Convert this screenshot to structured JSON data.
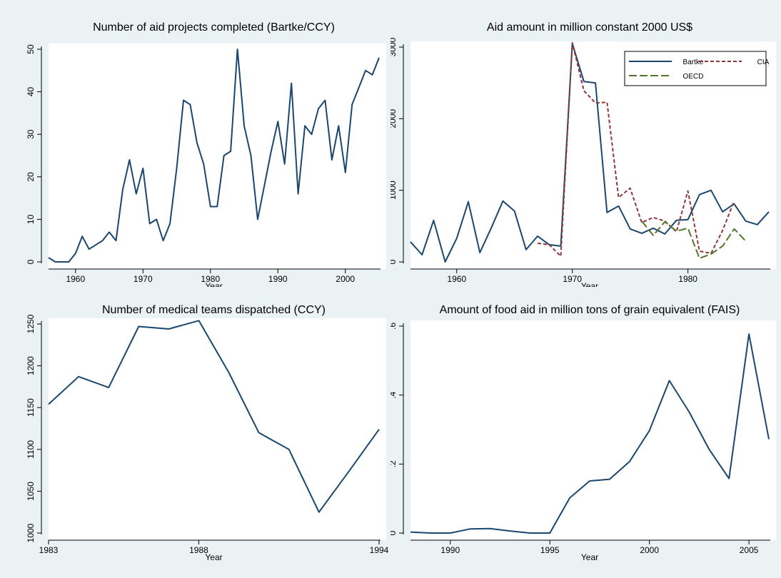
{
  "colors": {
    "background": "#eaf2f3",
    "plot_area": "#ffffff",
    "navy": "#1a476f",
    "maroon": "#90353b",
    "olive": "#55752f"
  },
  "chart_data": [
    {
      "type": "line",
      "title": "Number of aid projects completed (Bartke/CCY)",
      "xlabel": "Year",
      "ylabel": "",
      "xlim": [
        1956,
        2005
      ],
      "ylim": [
        0,
        50
      ],
      "xticks": [
        "1960",
        "1970",
        "1980",
        "1990",
        "2000"
      ],
      "yticks": [
        "0",
        "10",
        "20",
        "30",
        "40",
        "50"
      ],
      "grid": false,
      "series": [
        {
          "color": "#1a476f",
          "dash": "",
          "x": [
            1956,
            1957,
            1958,
            1959,
            1960,
            1961,
            1962,
            1963,
            1964,
            1965,
            1966,
            1967,
            1968,
            1969,
            1970,
            1971,
            1972,
            1973,
            1974,
            1975,
            1976,
            1977,
            1978,
            1979,
            1980,
            1981,
            1982,
            1983,
            1984,
            1985,
            1986,
            1987,
            1988,
            1989,
            1990,
            1991,
            1992,
            1993,
            1994,
            1995,
            1996,
            1997,
            1998,
            1999,
            2000,
            2001,
            2002,
            2003,
            2004,
            2005
          ],
          "y": [
            1,
            0,
            0,
            0,
            2,
            6,
            3,
            4,
            5,
            7,
            5,
            17,
            24,
            16,
            22,
            9,
            10,
            5,
            9,
            22,
            38,
            37,
            28,
            23,
            13,
            13,
            25,
            26,
            50,
            32,
            25,
            10,
            18,
            26,
            33,
            23,
            42,
            16,
            32,
            30,
            36,
            38,
            24,
            32,
            21,
            37,
            41,
            45,
            44,
            48
          ]
        }
      ]
    },
    {
      "type": "line",
      "title": "Aid amount in million constant 2000 US$",
      "xlabel": "Year",
      "ylabel": "",
      "xlim": [
        1956,
        1987
      ],
      "ylim": [
        0,
        3000
      ],
      "xticks": [
        "1960",
        "1970",
        "1980"
      ],
      "yticks": [
        "0",
        "1000",
        "2000",
        "3000"
      ],
      "grid": false,
      "legend": "top-right",
      "series": [
        {
          "name": "Bartke",
          "color": "#1a476f",
          "dash": "",
          "x": [
            1956,
            1957,
            1958,
            1959,
            1960,
            1961,
            1962,
            1963,
            1964,
            1965,
            1966,
            1967,
            1968,
            1969,
            1970,
            1971,
            1972,
            1973,
            1974,
            1975,
            1976,
            1977,
            1978,
            1979,
            1980,
            1981,
            1982,
            1983,
            1984,
            1985,
            1986,
            1987
          ],
          "y": [
            280,
            100,
            580,
            0,
            330,
            840,
            130,
            480,
            850,
            710,
            170,
            360,
            240,
            220,
            3050,
            2520,
            2500,
            690,
            780,
            460,
            400,
            470,
            390,
            580,
            590,
            940,
            1000,
            700,
            810,
            570,
            520,
            700
          ]
        },
        {
          "name": "CIA",
          "color": "#90353b",
          "dash": "5,3",
          "x": [
            1967,
            1968,
            1969,
            1970,
            1971,
            1972,
            1973,
            1974,
            1975,
            1976,
            1977,
            1978,
            1979,
            1980,
            1981,
            1982,
            1983,
            1984
          ],
          "y": [
            260,
            240,
            80,
            3060,
            2390,
            2220,
            2230,
            900,
            1030,
            550,
            620,
            570,
            420,
            990,
            150,
            120,
            440,
            850
          ]
        },
        {
          "name": "OECD",
          "color": "#55752f",
          "dash": "11,4",
          "x": [
            1976,
            1977,
            1978,
            1979,
            1980,
            1981,
            1982,
            1983,
            1984,
            1985
          ],
          "y": [
            570,
            370,
            560,
            430,
            470,
            50,
            110,
            220,
            460,
            290
          ]
        }
      ]
    },
    {
      "type": "line",
      "title": "Number of medical teams dispatched (CCY)",
      "xlabel": "Year",
      "ylabel": "",
      "xlim": [
        1983,
        1994
      ],
      "ylim": [
        1000,
        1250
      ],
      "xticks": [
        "1983",
        "1988",
        "1994"
      ],
      "yticks": [
        "1000",
        "1050",
        "1100",
        "1150",
        "1200",
        "1250"
      ],
      "grid": false,
      "series": [
        {
          "color": "#1a476f",
          "dash": "",
          "x": [
            1983,
            1984,
            1985,
            1986,
            1987,
            1988,
            1989,
            1990,
            1991,
            1992,
            1993,
            1994
          ],
          "y": [
            1154,
            1187,
            1174,
            1247,
            1244,
            1254,
            1192,
            1120,
            1100,
            1025,
            1074,
            1124
          ]
        }
      ]
    },
    {
      "type": "line",
      "title": "Amount of food aid in million tons of grain equivalent (FAIS)",
      "xlabel": "Year",
      "ylabel": "",
      "xlim": [
        1988,
        2006
      ],
      "ylim": [
        0,
        0.6
      ],
      "xticks": [
        "1990",
        "1995",
        "2000",
        "2005"
      ],
      "yticks": [
        "0",
        ".2",
        ".4",
        ".6"
      ],
      "grid": false,
      "series": [
        {
          "color": "#1a476f",
          "dash": "",
          "x": [
            1988,
            1989,
            1990,
            1991,
            1992,
            1993,
            1994,
            1995,
            1996,
            1997,
            1998,
            1999,
            2000,
            2001,
            2002,
            2003,
            2004,
            2005,
            2006
          ],
          "y": [
            0.003,
            0.0,
            0.0,
            0.012,
            0.013,
            0.006,
            0.0,
            0.0,
            0.102,
            0.151,
            0.156,
            0.207,
            0.297,
            0.442,
            0.351,
            0.243,
            0.158,
            0.577,
            0.272
          ]
        }
      ]
    }
  ]
}
